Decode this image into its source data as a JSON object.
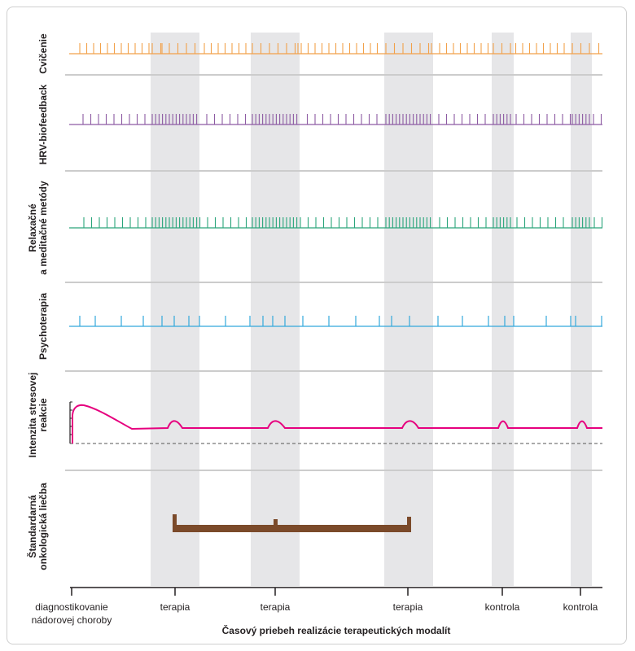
{
  "colors": {
    "exercise": "#f2a14a",
    "hrv": "#8d5ba3",
    "relax": "#2aa57b",
    "psycho": "#33a8dc",
    "stress": "#e6007e",
    "oncology": "#7b4a2a",
    "band": "#e6e6e8",
    "separator": "#cccccc",
    "axis": "#231f20"
  },
  "rows": [
    {
      "id": "exercise",
      "label_lines": [
        "Cvičenie"
      ]
    },
    {
      "id": "hrv",
      "label_lines": [
        "HRV-biofeedback"
      ]
    },
    {
      "id": "relax",
      "label_lines": [
        "Relaxačné",
        "a meditačné metódy"
      ]
    },
    {
      "id": "psycho",
      "label_lines": [
        "Psychoterapia"
      ]
    },
    {
      "id": "stress",
      "label_lines": [
        "Intenzita stresovej",
        "reakcie"
      ]
    },
    {
      "id": "oncology",
      "label_lines": [
        "Štandardarná",
        "onkologická liečba"
      ]
    }
  ],
  "x_ticks": [
    {
      "lines": [
        "diagnostikovanie",
        "nádorovej choroby"
      ]
    },
    {
      "lines": [
        "terapia"
      ]
    },
    {
      "lines": [
        "terapia"
      ]
    },
    {
      "lines": [
        "terapia"
      ]
    },
    {
      "lines": [
        "kontrola"
      ]
    },
    {
      "lines": [
        "kontrola"
      ]
    }
  ],
  "x_axis_title": "Časový priebeh realizácie terapeutických modalít"
}
